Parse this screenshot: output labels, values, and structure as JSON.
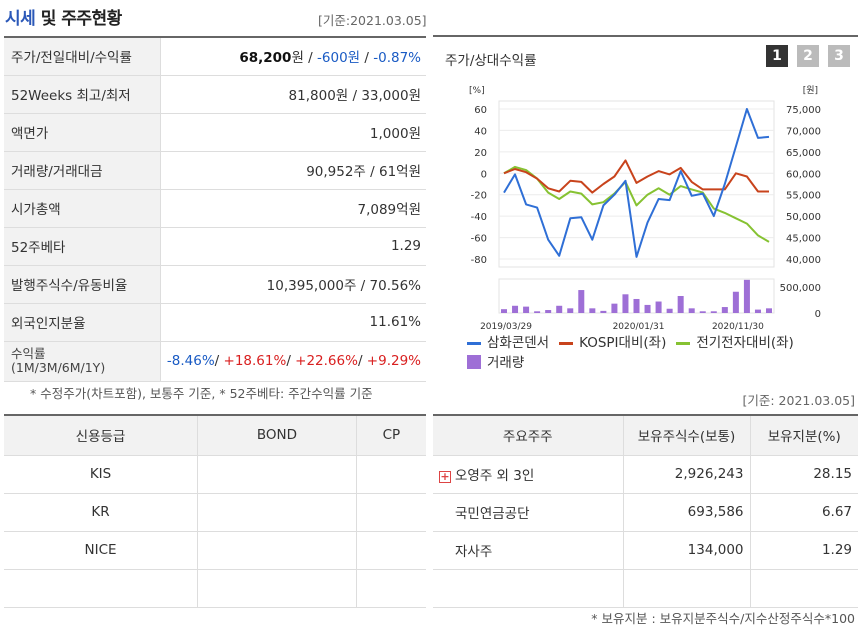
{
  "header": {
    "title_a": "시세",
    "title_b": " 및 주주현황",
    "base_date": "[기준:2021.03.05]"
  },
  "price": {
    "rows": [
      {
        "label": "주가/전일대비/수익률",
        "v1": "68,200",
        "v1_unit": "원",
        "sep1": " / ",
        "v2": "-600원",
        "sep2": " / ",
        "v3": "-0.87%"
      },
      {
        "label": "52Weeks 최고/최저",
        "value": "81,800원 / 33,000원"
      },
      {
        "label": "액면가",
        "value": "1,000원"
      },
      {
        "label": "거래량/거래대금",
        "value": "90,952주 / 61억원"
      },
      {
        "label": "시가총액",
        "value": "7,089억원"
      },
      {
        "label": "52주베타",
        "value": "1.29"
      },
      {
        "label": "발행주식수/유동비율",
        "value": "10,395,000주 / 70.56%"
      },
      {
        "label": "외국인지분율",
        "value": "11.61%"
      }
    ],
    "returns": {
      "label": "수익률",
      "sublabel": "(1M/3M/6M/1Y)",
      "m1": "-8.46%",
      "m3": "+18.61%",
      "m6": "+22.66%",
      "y1": "+9.29%",
      "sep": "/ "
    },
    "note": "* 수정주가(차트포함), 보통주 기준, * 52주베타: 주간수익률 기준"
  },
  "chart": {
    "title": "주가/상대수익률",
    "pages": [
      "1",
      "2",
      "3"
    ],
    "left_unit": "[%]",
    "right_unit": "[원]",
    "legend": {
      "s1": "삼화콘덴서",
      "s2": "KOSPI대비(좌)",
      "s3": "전기전자대비(좌)",
      "s4": "거래량"
    },
    "colors": {
      "s1": "#2f6fd6",
      "s2": "#c8431c",
      "s3": "#86c232",
      "s4": "#9e6fd6"
    }
  },
  "chart_data": {
    "type": "line",
    "left_ticks": [
      "60",
      "40",
      "20",
      "0",
      "-20",
      "-40",
      "-60",
      "-80"
    ],
    "right_ticks": [
      "75,000",
      "70,000",
      "65,000",
      "60,000",
      "55,000",
      "50,000",
      "45,000",
      "40,000"
    ],
    "volume_ticks": [
      "500,000",
      "0"
    ],
    "x_ticks": [
      "2019/03/29",
      "2020/01/31",
      "2020/11/30"
    ],
    "ylim_left": [
      -80,
      60
    ],
    "series": [
      {
        "name": "삼화콘덴서",
        "values": [
          -18,
          -1,
          -29,
          -32,
          -62,
          -77,
          -42,
          -41,
          -62,
          -30,
          -20,
          -7,
          -78,
          -46,
          -24,
          -25,
          2,
          -21,
          -19,
          -40,
          -10,
          25,
          60,
          33,
          34
        ]
      },
      {
        "name": "KOSPI대비(좌)",
        "values": [
          0,
          4,
          1,
          -5,
          -14,
          -17,
          -7,
          -8,
          -18,
          -10,
          -3,
          12,
          -9,
          -3,
          2,
          -1,
          5,
          -8,
          -15,
          -15,
          -15,
          0,
          -3,
          -17,
          -17
        ]
      },
      {
        "name": "전기전자대비(좌)",
        "values": [
          0,
          6,
          3,
          -5,
          -18,
          -24,
          -17,
          -19,
          -29,
          -27,
          -19,
          -8,
          -30,
          -20,
          -14,
          -20,
          -12,
          -15,
          -18,
          -33,
          -37,
          -42,
          -47,
          -58,
          -64
        ]
      },
      {
        "name": "거래량",
        "values": [
          90000,
          170000,
          150000,
          40000,
          70000,
          170000,
          110000,
          540000,
          110000,
          50000,
          220000,
          440000,
          330000,
          190000,
          270000,
          100000,
          400000,
          110000,
          40000,
          40000,
          140000,
          500000,
          780000,
          80000,
          110000
        ]
      }
    ]
  },
  "credit": {
    "headers": [
      "신용등급",
      "BOND",
      "CP"
    ],
    "rows": [
      [
        "KIS",
        "",
        ""
      ],
      [
        "KR",
        "",
        ""
      ],
      [
        "NICE",
        "",
        ""
      ],
      [
        "",
        "",
        ""
      ]
    ]
  },
  "holders": {
    "base_date": "[기준: 2021.03.05]",
    "headers": [
      "주요주주",
      "보유주식수(보통)",
      "보유지분(%)"
    ],
    "rows": [
      {
        "name": "오영주 외 3인",
        "shares": "2,926,243",
        "pct": "28.15"
      },
      {
        "name": "국민연금공단",
        "shares": "693,586",
        "pct": "6.67"
      },
      {
        "name": "자사주",
        "shares": "134,000",
        "pct": "1.29"
      },
      {
        "name": "",
        "shares": "",
        "pct": ""
      }
    ],
    "note": "* 보유지분 : 보유지분주식수/지수산정주식수*100"
  }
}
